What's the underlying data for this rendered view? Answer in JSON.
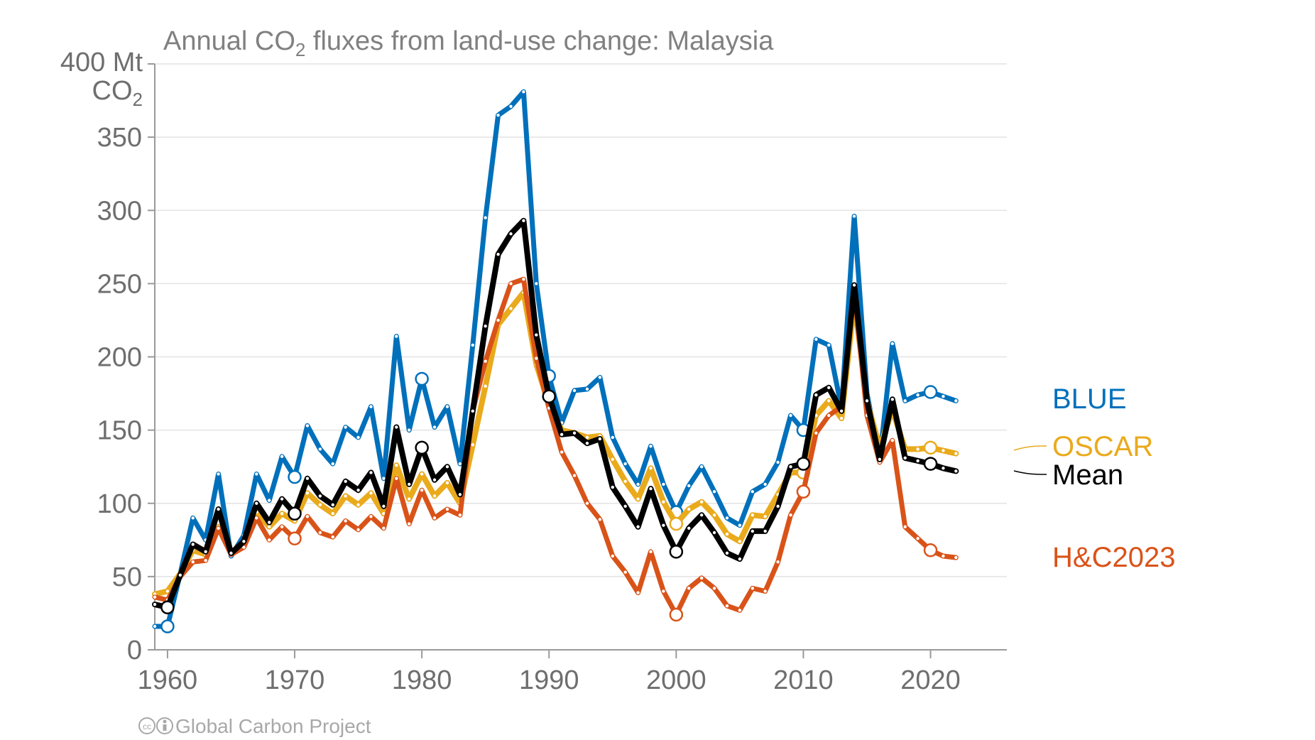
{
  "chart_data": {
    "type": "line",
    "title_main": "Annual CO",
    "title_sub": "2",
    "title_rest": " fluxes from land-use change: Malaysia",
    "unit_line1": "400 Mt",
    "unit_line2_main": "CO",
    "unit_line2_sub": "2",
    "ylim": [
      0,
      400
    ],
    "xlim": [
      1959,
      2026
    ],
    "y_ticks": [
      0,
      50,
      100,
      150,
      200,
      250,
      300,
      350
    ],
    "x_ticks": [
      1960,
      1970,
      1980,
      1990,
      2000,
      2010,
      2020
    ],
    "grid": true,
    "credit": "Global Carbon Project",
    "years": [
      1959,
      1960,
      1961,
      1962,
      1963,
      1964,
      1965,
      1966,
      1967,
      1968,
      1969,
      1970,
      1971,
      1972,
      1973,
      1974,
      1975,
      1976,
      1977,
      1978,
      1979,
      1980,
      1981,
      1982,
      1983,
      1984,
      1985,
      1986,
      1987,
      1988,
      1989,
      1990,
      1991,
      1992,
      1993,
      1994,
      1995,
      1996,
      1997,
      1998,
      1999,
      2000,
      2001,
      2002,
      2003,
      2004,
      2005,
      2006,
      2007,
      2008,
      2009,
      2010,
      2011,
      2012,
      2013,
      2014,
      2015,
      2016,
      2017,
      2018,
      2019,
      2020,
      2021,
      2022
    ],
    "series": [
      {
        "name": "BLUE",
        "color": "#0070bb",
        "width": 7,
        "values": [
          16,
          16,
          52,
          90,
          75,
          120,
          64,
          78,
          120,
          102,
          132,
          118,
          153,
          137,
          127,
          152,
          145,
          166,
          117,
          214,
          150,
          185,
          152,
          166,
          127,
          208,
          295,
          365,
          371,
          381,
          250,
          187,
          155,
          177,
          178,
          186,
          145,
          127,
          113,
          139,
          113,
          94,
          112,
          125,
          108,
          90,
          85,
          108,
          113,
          128,
          160,
          150,
          212,
          208,
          165,
          296,
          175,
          130,
          209,
          170,
          174,
          176,
          173,
          170
        ],
        "rings": [
          1960,
          1970,
          1980,
          1990,
          2000,
          2010,
          2020
        ]
      },
      {
        "name": "OSCAR",
        "color": "#e9aa1c",
        "width": 8,
        "values": [
          38,
          40,
          52,
          68,
          65,
          84,
          66,
          71,
          94,
          84,
          93,
          88,
          107,
          99,
          93,
          105,
          99,
          107,
          93,
          126,
          103,
          120,
          105,
          114,
          100,
          140,
          180,
          222,
          233,
          244,
          195,
          167,
          150,
          148,
          145,
          146,
          130,
          115,
          103,
          124,
          101,
          86,
          96,
          101,
          92,
          79,
          74,
          92,
          91,
          106,
          121,
          121,
          160,
          170,
          158,
          238,
          170,
          138,
          164,
          137,
          137,
          138,
          136,
          134
        ],
        "rings": [
          2000,
          2010,
          2020
        ]
      },
      {
        "name": "H&C2023",
        "color": "#d95319",
        "width": 7,
        "values": [
          36,
          34,
          50,
          60,
          61,
          83,
          65,
          70,
          90,
          75,
          84,
          76,
          91,
          80,
          77,
          88,
          82,
          91,
          83,
          117,
          86,
          109,
          90,
          96,
          92,
          163,
          197,
          225,
          250,
          253,
          199,
          165,
          135,
          119,
          100,
          89,
          64,
          53,
          39,
          67,
          40,
          24,
          42,
          49,
          42,
          30,
          27,
          42,
          40,
          60,
          92,
          108,
          148,
          160,
          166,
          245,
          160,
          128,
          143,
          84,
          76,
          68,
          64,
          63
        ],
        "rings": [
          1970,
          2000,
          2010,
          2020
        ]
      },
      {
        "name": "Mean",
        "color": "#000000",
        "width": 8,
        "values": [
          31,
          29,
          51,
          72,
          67,
          96,
          66,
          74,
          100,
          87,
          103,
          93,
          117,
          105,
          99,
          115,
          109,
          121,
          98,
          152,
          113,
          138,
          116,
          125,
          106,
          163,
          221,
          270,
          284,
          293,
          215,
          173,
          147,
          148,
          141,
          144,
          111,
          98,
          84,
          110,
          85,
          67,
          83,
          92,
          80,
          66,
          62,
          81,
          81,
          98,
          125,
          127,
          174,
          179,
          163,
          249,
          170,
          130,
          171,
          131,
          129,
          127,
          124,
          122
        ],
        "rings": [
          1960,
          1970,
          1980,
          1990,
          2000,
          2010,
          2020
        ]
      }
    ],
    "legend": [
      {
        "name": "BLUE",
        "color": "#0070bb",
        "leader": false
      },
      {
        "name": "OSCAR",
        "color": "#e9aa1c",
        "leader": true
      },
      {
        "name": "Mean",
        "color": "#000000",
        "leader": true
      },
      {
        "name": "H&C2023",
        "color": "#d95319",
        "leader": false
      }
    ]
  }
}
